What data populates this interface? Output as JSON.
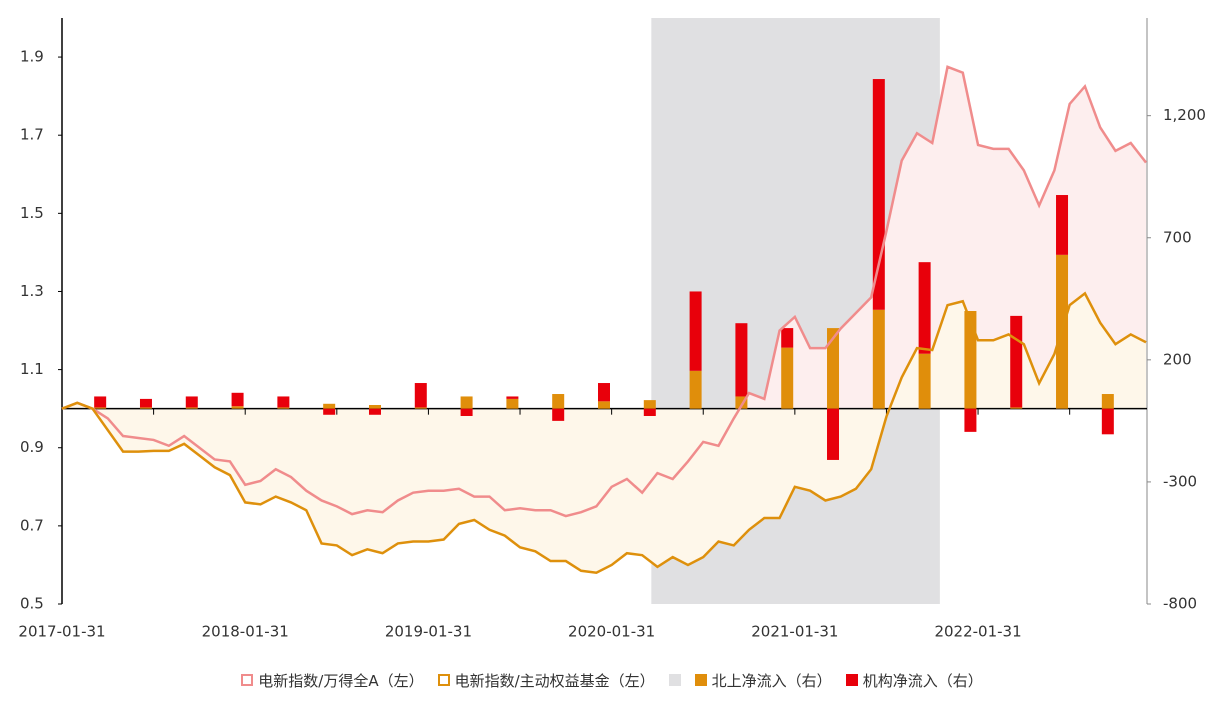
{
  "chart_data": {
    "type": "combo",
    "categories": [
      "2017-01-31",
      null,
      null,
      null,
      null,
      null,
      null,
      null,
      null,
      null,
      null,
      null,
      "2018-01-31",
      null,
      null,
      null,
      null,
      null,
      null,
      null,
      null,
      null,
      null,
      null,
      "2019-01-31",
      null,
      null,
      null,
      null,
      null,
      null,
      null,
      null,
      null,
      null,
      null,
      "2020-01-31",
      null,
      null,
      null,
      null,
      null,
      null,
      null,
      null,
      null,
      null,
      null,
      "2021-01-31",
      null,
      null,
      null,
      null,
      null,
      null,
      null,
      null,
      null,
      null,
      null,
      "2022-01-31",
      null,
      null,
      null,
      null,
      null,
      null,
      null,
      null,
      null,
      null,
      null
    ],
    "ylim": [
      0.5,
      2.0
    ],
    "yticks": [
      0.5,
      0.7,
      0.9,
      1.1,
      1.3,
      1.5,
      1.7,
      1.9
    ],
    "y2lim": [
      -800,
      1600
    ],
    "y2ticks": [
      -800,
      -300,
      200,
      700,
      {
        "value": 1200,
        "label": "1,200"
      }
    ],
    "shade": {
      "start": 38.6,
      "end": 57.5,
      "color": "#e0e0e2"
    },
    "series": [
      {
        "name": "电新指数/万得全A（左）",
        "type": "line",
        "color": "#f08c8c",
        "fill": "#fdeeee",
        "values": [
          1.0,
          1.015,
          1.0,
          0.975,
          0.93,
          0.925,
          0.92,
          0.905,
          0.93,
          0.9,
          0.87,
          0.865,
          0.805,
          0.815,
          0.845,
          0.825,
          0.79,
          0.765,
          0.75,
          0.73,
          0.74,
          0.735,
          0.765,
          0.785,
          0.79,
          0.79,
          0.795,
          0.775,
          0.775,
          0.74,
          0.745,
          0.74,
          0.74,
          0.725,
          0.735,
          0.75,
          0.8,
          0.82,
          0.785,
          0.835,
          0.82,
          0.865,
          0.915,
          0.905,
          0.975,
          1.04,
          1.025,
          1.2,
          1.235,
          1.155,
          1.155,
          1.205,
          1.245,
          1.285,
          1.455,
          1.635,
          1.705,
          1.68,
          1.875,
          1.86,
          1.675,
          1.665,
          1.665,
          1.61,
          1.52,
          1.61,
          1.78,
          1.825,
          1.72,
          1.66,
          1.68,
          1.63
        ]
      },
      {
        "name": "电新指数/主动权益基金（左）",
        "type": "line",
        "color": "#de900c",
        "fill": "#fef7ea",
        "values": [
          1.0,
          1.015,
          1.0,
          0.945,
          0.89,
          0.89,
          0.892,
          0.892,
          0.91,
          0.88,
          0.85,
          0.83,
          0.76,
          0.755,
          0.775,
          0.76,
          0.74,
          0.655,
          0.65,
          0.625,
          0.64,
          0.63,
          0.655,
          0.66,
          0.66,
          0.665,
          0.705,
          0.715,
          0.69,
          0.675,
          0.645,
          0.635,
          0.61,
          0.61,
          0.585,
          0.58,
          0.6,
          0.63,
          0.625,
          0.595,
          0.62,
          0.6,
          0.62,
          0.66,
          0.65,
          0.69,
          0.72,
          0.72,
          0.8,
          0.79,
          0.765,
          0.775,
          0.795,
          0.845,
          0.98,
          1.08,
          1.155,
          1.15,
          1.265,
          1.275,
          1.175,
          1.175,
          1.19,
          1.165,
          1.065,
          1.14,
          1.265,
          1.295,
          1.22,
          1.165,
          1.19,
          1.17
        ]
      },
      {
        "name": "北上净流入（右）",
        "type": "bar",
        "axis": "y2",
        "color": "#e08e0b",
        "values": [
          null,
          null,
          5,
          null,
          null,
          5,
          null,
          null,
          5,
          null,
          null,
          10,
          null,
          null,
          5,
          null,
          null,
          20,
          null,
          null,
          15,
          null,
          null,
          5,
          null,
          null,
          50,
          null,
          null,
          40,
          null,
          null,
          60,
          null,
          null,
          30,
          null,
          null,
          35,
          null,
          null,
          155,
          null,
          null,
          50,
          null,
          null,
          250,
          null,
          null,
          330,
          null,
          null,
          405,
          null,
          null,
          225,
          null,
          null,
          400,
          null,
          null,
          5,
          null,
          null,
          630,
          null,
          null,
          60,
          null,
          null,
          null
        ]
      },
      {
        "name": "机构净流入（右）",
        "type": "bar",
        "axis": "y2",
        "color": "#e8000b",
        "values": [
          null,
          null,
          45,
          null,
          null,
          35,
          null,
          null,
          45,
          null,
          null,
          55,
          null,
          null,
          45,
          null,
          null,
          -25,
          null,
          null,
          -25,
          null,
          null,
          100,
          null,
          null,
          -30,
          null,
          null,
          10,
          null,
          null,
          -50,
          null,
          null,
          75,
          null,
          null,
          -30,
          null,
          null,
          325,
          null,
          null,
          300,
          null,
          null,
          80,
          null,
          null,
          -210,
          null,
          null,
          945,
          null,
          null,
          375,
          null,
          null,
          -95,
          null,
          null,
          375,
          null,
          null,
          245,
          null,
          null,
          -105,
          null,
          null,
          null
        ]
      }
    ]
  }
}
